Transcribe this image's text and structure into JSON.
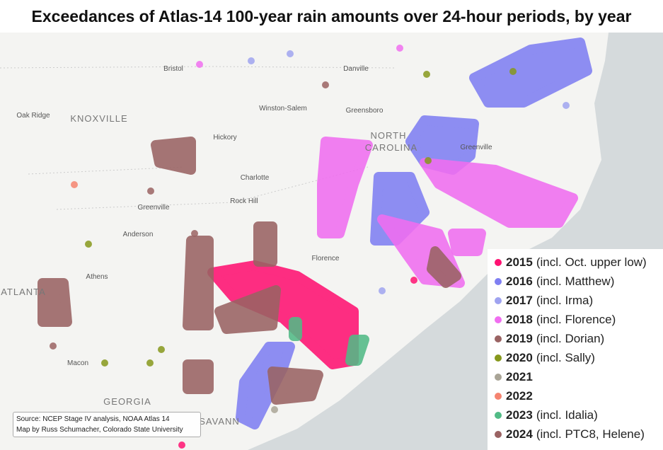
{
  "header": {
    "title": "Exceedances of Atlas-14 100-year rain amounts over 24-hour periods, by year"
  },
  "places": [
    "Bristol",
    "Danville",
    "Oak Ridge",
    "KNOXVILLE",
    "Winston-Salem",
    "Greensboro",
    "NORTH",
    "CAROLINA",
    "Greenville",
    "Hickory",
    "Charlotte",
    "Rock Hill",
    "Greenville",
    "Anderson",
    "Florence",
    "Athens",
    "ATLANTA",
    "Macon",
    "GEORGIA",
    "SAVANN"
  ],
  "legend": {
    "items": [
      {
        "year": "2015",
        "note": "(incl. Oct. upper low)",
        "color": "#ff1272"
      },
      {
        "year": "2016",
        "note": "(incl. Matthew)",
        "color": "#7f7ff2"
      },
      {
        "year": "2017",
        "note": "(incl. Irma)",
        "color": "#9fa3f0"
      },
      {
        "year": "2018",
        "note": "(incl. Florence)",
        "color": "#f06ef0"
      },
      {
        "year": "2019",
        "note": "(incl. Dorian)",
        "color": "#9a6363"
      },
      {
        "year": "2020",
        "note": "(incl. Sally)",
        "color": "#86981c"
      },
      {
        "year": "2021",
        "note": null,
        "color": "#a9a496"
      },
      {
        "year": "2022",
        "note": null,
        "color": "#f58470"
      },
      {
        "year": "2023",
        "note": "(incl. Idalia)",
        "color": "#52bb86"
      },
      {
        "year": "2024",
        "note": "(incl. PTC8, Helene)",
        "color": "#9a6363"
      }
    ]
  },
  "source": [
    "Source: NCEP Stage IV analysis, NOAA Atlas 14",
    "Map by Russ Schumacher, Colorado State University"
  ]
}
